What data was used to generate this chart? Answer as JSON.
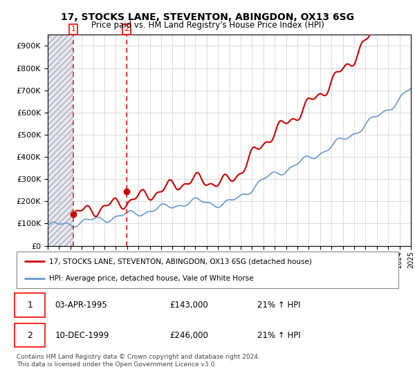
{
  "title": "17, STOCKS LANE, STEVENTON, ABINGDON, OX13 6SG",
  "subtitle": "Price paid vs. HM Land Registry's House Price Index (HPI)",
  "ylim": [
    0,
    950000
  ],
  "yticks": [
    0,
    100000,
    200000,
    300000,
    400000,
    500000,
    600000,
    700000,
    800000,
    900000
  ],
  "x_start_year": 1993,
  "x_end_year": 2025,
  "hpi_color": "#6699cc",
  "price_color": "#cc0000",
  "dashed_line_color": "#dd2222",
  "marker1_date": 1995.25,
  "marker1_value": 143000,
  "marker1_label": "1",
  "marker1_date_str": "03-APR-1995",
  "marker1_price_str": "£143,000",
  "marker1_hpi_str": "21% ↑ HPI",
  "marker2_date": 1999.95,
  "marker2_value": 246000,
  "marker2_label": "2",
  "marker2_date_str": "10-DEC-1999",
  "marker2_price_str": "£246,000",
  "marker2_hpi_str": "21% ↑ HPI",
  "legend_line1": "17, STOCKS LANE, STEVENTON, ABINGDON, OX13 6SG (detached house)",
  "legend_line2": "HPI: Average price, detached house, Vale of White Horse",
  "footnote": "Contains HM Land Registry data © Crown copyright and database right 2024.\nThis data is licensed under the Open Government Licence v3.0.",
  "plot_bg": "#ffffff",
  "hatch_bg": "#e8e8f4"
}
